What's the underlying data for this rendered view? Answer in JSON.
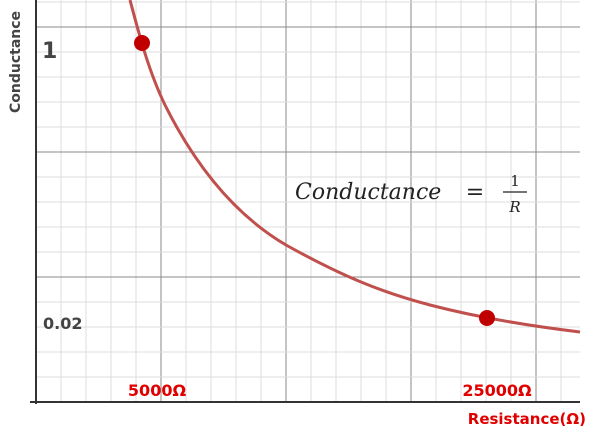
{
  "y_axis_label": "Conductance",
  "x_axis_label": "Resistance(Ω)",
  "y_labels": [
    "1",
    "0.02"
  ],
  "x_labels": [
    "5000Ω",
    "25000Ω"
  ],
  "formula": {
    "lhs": "Conductance",
    "equals": "=",
    "numerator": "1",
    "denominator": "R"
  }
}
